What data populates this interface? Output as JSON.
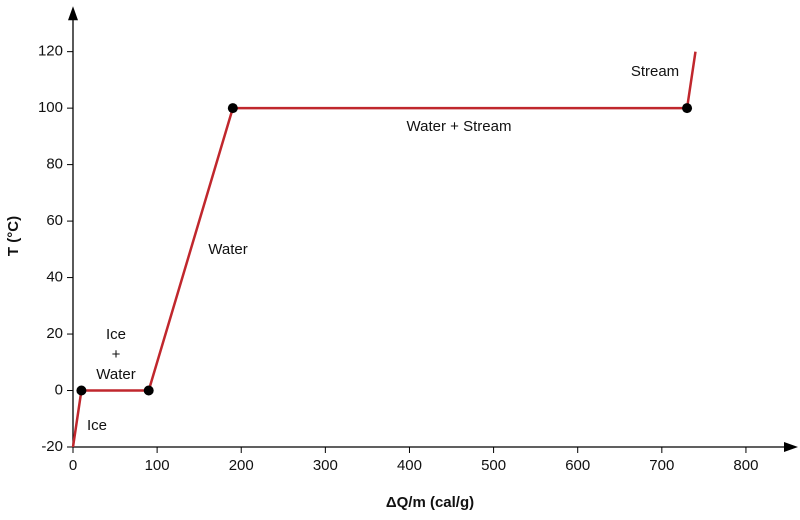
{
  "chart_data": {
    "type": "line",
    "x_label": "ΔQ/m (cal/g)",
    "y_label": "T (°C)",
    "x": [
      0,
      10,
      90,
      190,
      730,
      740
    ],
    "series": [
      {
        "color": "#c0272d",
        "values": [
          -20,
          0,
          0,
          100,
          100,
          120
        ],
        "markers": [
          false,
          true,
          true,
          true,
          true,
          false
        ]
      }
    ],
    "xlim": [
      0,
      850
    ],
    "ylim": [
      -20,
      135
    ],
    "xticks": [
      0,
      100,
      200,
      300,
      400,
      500,
      600,
      700,
      800
    ],
    "yticks": [
      -20,
      0,
      20,
      40,
      60,
      80,
      100,
      120
    ],
    "annotations": [
      {
        "lines": [
          "Ice"
        ]
      },
      {
        "lines": [
          "Ice",
          "+",
          "Water"
        ]
      },
      {
        "lines": [
          "Water"
        ]
      },
      {
        "lines": [
          "Water + Stream"
        ]
      },
      {
        "lines": [
          "Stream"
        ]
      }
    ]
  }
}
